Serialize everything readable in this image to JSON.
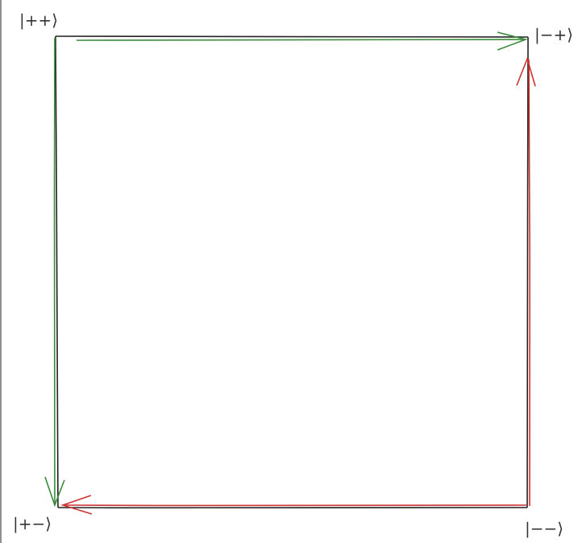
{
  "diagram": {
    "nodes": [
      {
        "id": "pp",
        "label": "|++⟩"
      },
      {
        "id": "mp",
        "label": "|−+⟩"
      },
      {
        "id": "pm",
        "label": "|+−⟩"
      },
      {
        "id": "mm",
        "label": "|−−⟩"
      }
    ],
    "edges": [
      {
        "from": "pp",
        "to": "mp",
        "color": "#3a8a3a"
      },
      {
        "from": "pp",
        "to": "pm",
        "color": "#3a8a3a"
      },
      {
        "from": "mm",
        "to": "mp",
        "color": "#cc3333"
      },
      {
        "from": "mm",
        "to": "pm",
        "color": "#cc3333"
      }
    ],
    "outline_color": "#222222"
  }
}
